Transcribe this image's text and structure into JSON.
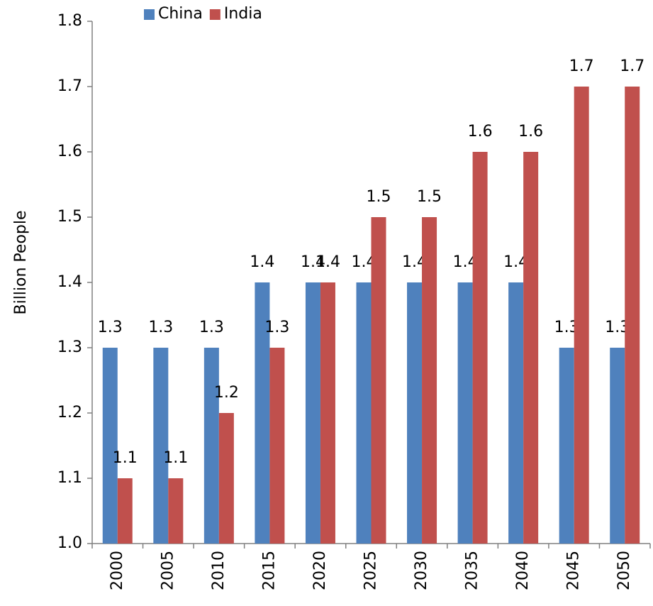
{
  "chart_data": {
    "type": "bar",
    "y_label": "Billion People",
    "categories": [
      "2000",
      "2005",
      "2010",
      "2015",
      "2020",
      "2025",
      "2030",
      "2035",
      "2040",
      "2045",
      "2050"
    ],
    "series": [
      {
        "name": "China",
        "color": "#4f81bd",
        "values": [
          1.3,
          1.3,
          1.3,
          1.4,
          1.4,
          1.4,
          1.4,
          1.4,
          1.4,
          1.3,
          1.3
        ]
      },
      {
        "name": "India",
        "color": "#c0504d",
        "values": [
          1.1,
          1.1,
          1.2,
          1.3,
          1.4,
          1.5,
          1.5,
          1.6,
          1.6,
          1.7,
          1.7
        ]
      }
    ],
    "ylim": [
      1.0,
      1.8
    ],
    "yticks": [
      {
        "value": 1.0,
        "label": "1.0"
      },
      1.1,
      1.2,
      1.3,
      1.4,
      1.5,
      1.6,
      1.7,
      1.8
    ],
    "legend": "top"
  }
}
